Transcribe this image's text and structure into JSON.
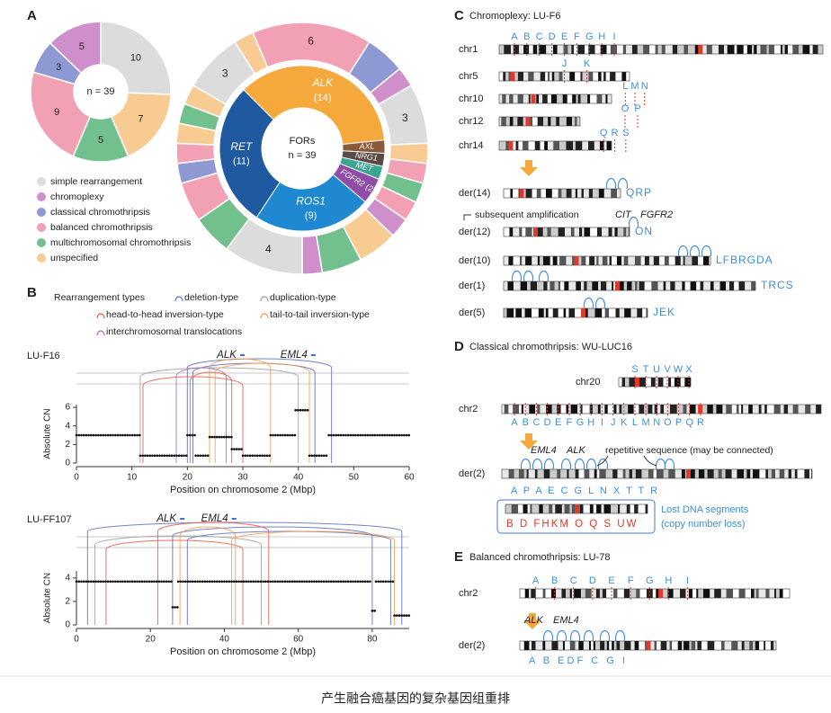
{
  "caption": "产生融合癌基因的复杂基因组重排",
  "panel_labels": [
    "A",
    "B",
    "C",
    "D",
    "E"
  ],
  "chart_data": [
    {
      "type": "pie",
      "center_label": "n = 39",
      "categories": [
        "simple rearrangement",
        "chromoplexy",
        "classical chromothripsis",
        "balanced chromothripsis",
        "multichromosomal chromothripsis",
        "unspecified"
      ],
      "colors": [
        "#dcdcdc",
        "#cf8fca",
        "#8e98d2",
        "#f2a0b3",
        "#72c08e",
        "#f8cb92"
      ],
      "values": [
        10,
        5,
        3,
        9,
        5,
        7
      ]
    },
    {
      "type": "pie",
      "center_title": "FORs",
      "center_label": "n = 39",
      "categories": [
        "ALK",
        "AXL",
        "NRG1",
        "MET",
        "FGFR2",
        "ROS1",
        "RET"
      ],
      "values": [
        14,
        1,
        1,
        1,
        2,
        9,
        11
      ],
      "value_labels": [
        "(14)",
        null,
        null,
        null,
        "(2)",
        "(9)",
        "(11)"
      ],
      "colors": [
        "#f5a93c",
        "#8a5a3a",
        "#5a4a44",
        "#3aa592",
        "#8f4da8",
        "#1e88d0",
        "#1f5aa0"
      ],
      "outer_ring": {
        "categories": [
          "simple rearrangement",
          "unspecified",
          "balanced chromothripsis",
          "classical chromothripsis",
          "chromoplexy",
          "simple rearrangement",
          "unspecified",
          "balanced chromothripsis",
          "multichromosomal chromothripsis",
          "balanced chromothripsis",
          "chromoplexy",
          "unspecified",
          "multichromosomal chromothripsis",
          "chromoplexy",
          "simple rearrangement",
          "multichromosomal chromothripsis",
          "balanced chromothripsis",
          "classical chromothripsis",
          "balanced chromothripsis",
          "unspecified",
          "multichromosomal chromothripsis",
          "unspecified"
        ],
        "values": [
          3,
          1,
          6,
          2,
          1,
          3,
          1,
          1,
          1,
          1,
          1,
          2,
          2,
          1,
          4,
          2,
          2,
          1,
          1,
          1,
          1,
          1
        ]
      }
    },
    {
      "type": "scatter",
      "title": "LU-F16",
      "x_label": "Position on chromosome 2 (Mbp)",
      "y_label": "Absolute CN",
      "xlim": [
        0,
        60
      ],
      "xticks": [
        0,
        10,
        20,
        30,
        40,
        50,
        60
      ],
      "ylim": [
        0,
        6.3
      ],
      "yticks": [
        0,
        2,
        4,
        6
      ],
      "x": [
        0,
        11.5,
        20,
        21.5,
        24,
        28,
        30,
        35,
        39.5,
        42,
        45.5
      ],
      "x_end": [
        11.5,
        20,
        21.5,
        24,
        28,
        30,
        35,
        39.5,
        42,
        45.5,
        60
      ],
      "values": [
        3,
        0.8,
        3,
        0.8,
        2.8,
        1.5,
        0.8,
        3,
        5.7,
        0.8,
        3
      ],
      "genes": [
        {
          "name": "ALK",
          "position": 29.5
        },
        {
          "name": "EML4",
          "position": 42.3
        }
      ],
      "rearrangements": [
        {
          "type": "deletion-type",
          "start": 20,
          "end": 46
        },
        {
          "type": "deletion-type",
          "start": 21,
          "end": 43
        },
        {
          "type": "duplication-type",
          "start": 11.5,
          "end": 40
        },
        {
          "type": "head-to-head inversion-type",
          "start": 20.5,
          "end": 28
        },
        {
          "type": "head-to-head inversion-type",
          "start": 12,
          "end": 30
        },
        {
          "type": "tail-to-tail inversion-type",
          "start": 24,
          "end": 35
        },
        {
          "type": "tail-to-tail inversion-type",
          "start": 25,
          "end": 42
        },
        {
          "type": "interchromosomal translocations",
          "start": 18,
          "end": 27
        }
      ]
    },
    {
      "type": "scatter",
      "title": "LU-FF107",
      "x_label": "Position on chromosome 2 (Mbp)",
      "y_label": "Absolute CN",
      "xlim": [
        0,
        90
      ],
      "xticks": [
        0,
        20,
        40,
        60,
        80
      ],
      "ylim": [
        0,
        4.6
      ],
      "yticks": [
        0,
        2,
        4
      ],
      "x": [
        0,
        26,
        27.5,
        80,
        81,
        86
      ],
      "x_end": [
        26,
        27.5,
        80,
        81,
        86,
        90
      ],
      "values": [
        3.7,
        1.5,
        3.7,
        1.2,
        3.7,
        0.8
      ],
      "genes": [
        {
          "name": "ALK",
          "position": 28
        },
        {
          "name": "EML4",
          "position": 42
        }
      ],
      "rearrangements": [
        {
          "type": "deletion-type",
          "start": 3,
          "end": 88
        },
        {
          "type": "deletion-type",
          "start": 26,
          "end": 80
        },
        {
          "type": "deletion-type",
          "start": 30,
          "end": 85
        },
        {
          "type": "duplication-type",
          "start": 5,
          "end": 50
        },
        {
          "type": "head-to-head inversion-type",
          "start": 8,
          "end": 45
        },
        {
          "type": "head-to-head inversion-type",
          "start": 22,
          "end": 52
        },
        {
          "type": "tail-to-tail inversion-type",
          "start": 28,
          "end": 43
        },
        {
          "type": "tail-to-tail inversion-type",
          "start": 42,
          "end": 86
        }
      ]
    }
  ],
  "panel_b_legend": {
    "title": "Rearrangement types",
    "types": [
      "deletion-type",
      "duplication-type",
      "head-to-head inversion-type",
      "tail-to-tail inversion-type",
      "interchromosomal translocations"
    ],
    "colors": [
      "#5c6bc0",
      "#9e9e9e",
      "#e45a47",
      "#f39c4a",
      "#b06ab3"
    ]
  },
  "panel_c": {
    "title": "Chromoplexy: LU-F6",
    "chromosomes": [
      {
        "name": "chr1",
        "letters": [
          "A",
          "B",
          "C",
          "D",
          "E",
          "F",
          "G",
          "H",
          "I"
        ]
      },
      {
        "name": "chr5",
        "letters": [
          "J",
          "K"
        ]
      },
      {
        "name": "chr10",
        "letters": [
          "L",
          "M",
          "N"
        ]
      },
      {
        "name": "chr12",
        "letters": [
          "O",
          "P"
        ]
      },
      {
        "name": "chr14",
        "letters": [
          "Q",
          "R",
          "S"
        ]
      }
    ],
    "derivatives": [
      {
        "name": "der(14)",
        "letters": "QRP"
      },
      {
        "name": "der(12)",
        "letters": "ON"
      },
      {
        "name": "der(10)",
        "letters": "LFBRGDA"
      },
      {
        "name": "der(1)",
        "letters": "TRCS"
      },
      {
        "name": "der(5)",
        "letters": "JEK"
      }
    ],
    "note": "subsequent amplification",
    "genes": [
      "CIT",
      "FGFR2"
    ]
  },
  "panel_d": {
    "title": "Classical chromothripsis: WU-LUC16",
    "chromosomes": [
      {
        "name": "chr20",
        "letters": [
          "S",
          "T",
          "U",
          "V",
          "W",
          "X"
        ]
      },
      {
        "name": "chr2",
        "letters": [
          "A",
          "B",
          "C",
          "D",
          "E",
          "F",
          "G",
          "H",
          "I",
          "J",
          "K",
          "L",
          "M",
          "N",
          "O",
          "P",
          "Q",
          "R"
        ]
      }
    ],
    "derivative": {
      "name": "der(2)",
      "genes": [
        "EML4",
        "ALK"
      ],
      "letters": "A P A E C G L N X T T R"
    },
    "note": "repetitive sequence (may be connected)",
    "lost": {
      "title": "Lost DNA segments",
      "subtitle": "(copy number loss)",
      "letters": "B D FHKM O Q S UW"
    }
  },
  "panel_e": {
    "title": "Balanced chromothripsis: LU-78",
    "chromosome": {
      "name": "chr2",
      "letters": [
        "A",
        "B",
        "C",
        "D",
        "E",
        "F",
        "G",
        "H",
        "I"
      ]
    },
    "derivative": {
      "name": "der(2)",
      "genes": [
        "ALK",
        "EML4"
      ],
      "letters": "A B EDF C G I"
    }
  }
}
